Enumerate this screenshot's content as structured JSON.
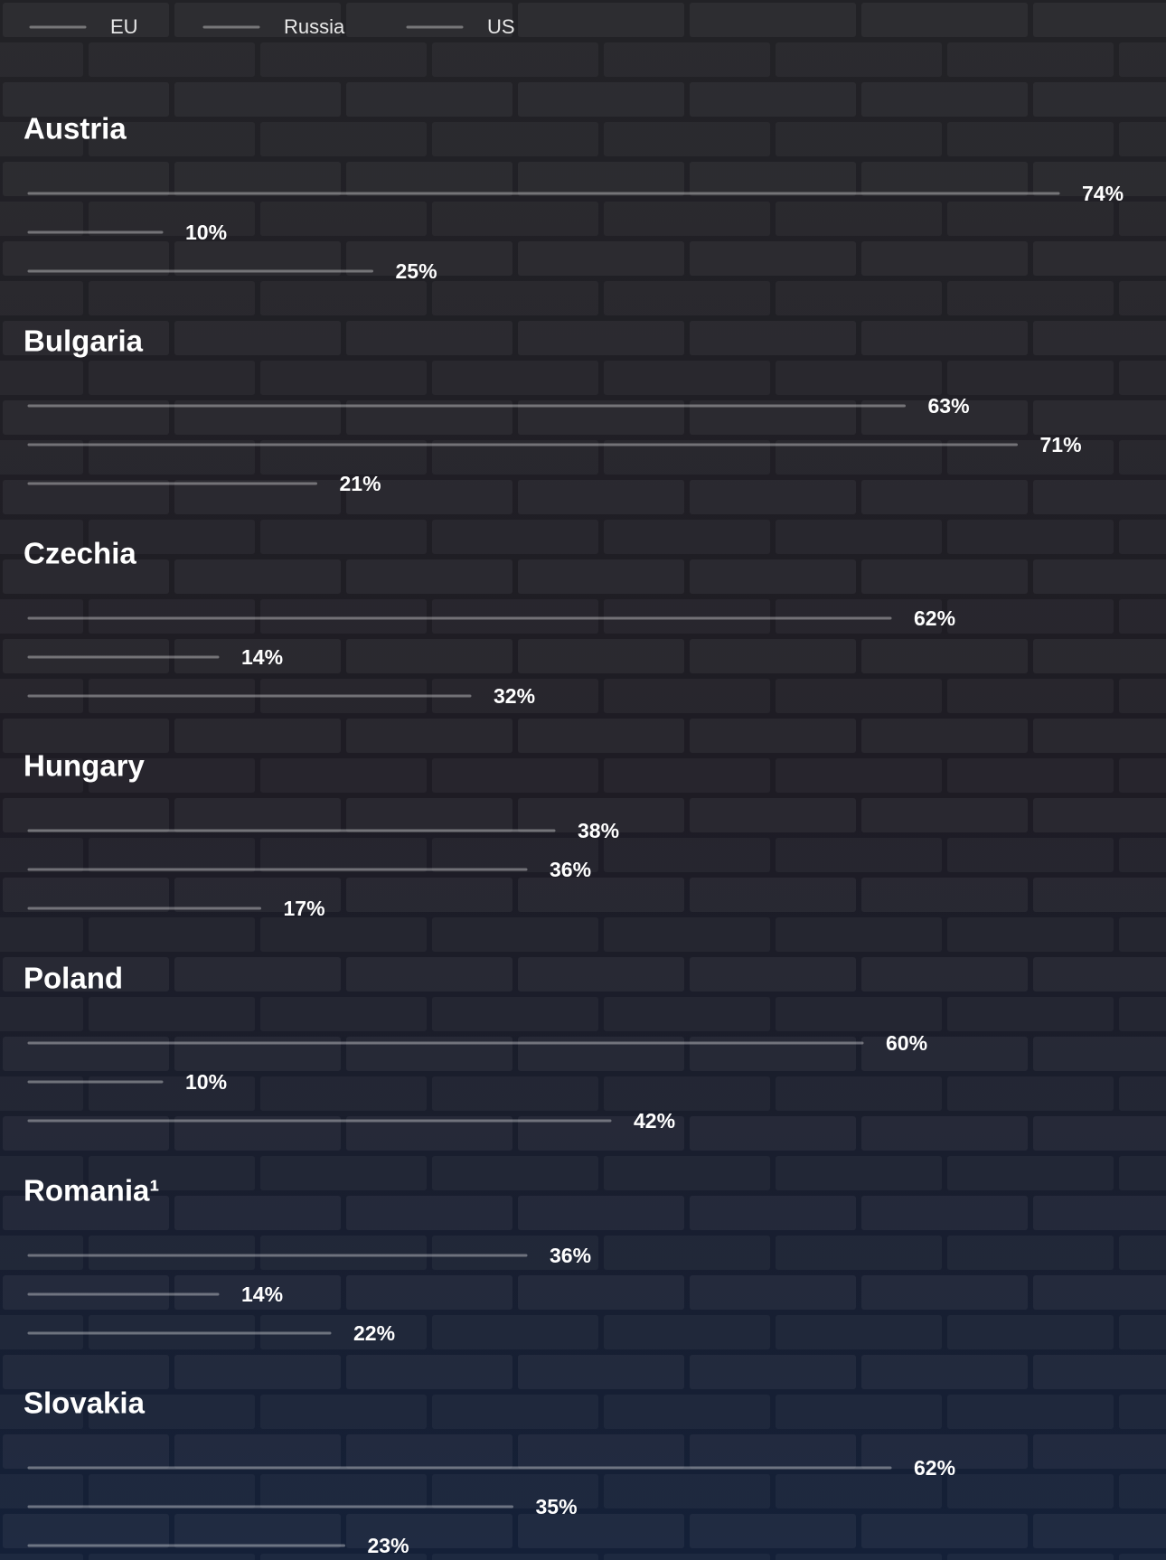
{
  "chart_data": {
    "type": "bar",
    "orientation": "horizontal",
    "categories": [
      "Austria",
      "Bulgaria",
      "Czechia",
      "Hungary",
      "Poland",
      "Romania¹",
      "Slovakia"
    ],
    "series": [
      {
        "name": "EU",
        "color": "#f7e81a",
        "values": [
          74,
          63,
          62,
          38,
          60,
          36,
          62
        ],
        "value_labels": [
          "74%",
          "63%",
          "62%",
          "38%",
          "60%",
          "36%",
          "62%"
        ]
      },
      {
        "name": "Russia",
        "color": "#ff2d6f",
        "values": [
          10,
          71,
          14,
          36,
          10,
          14,
          35
        ],
        "value_labels": [
          "10%",
          "71%",
          "14%",
          "36%",
          "10%",
          "14%",
          "35%"
        ]
      },
      {
        "name": "US",
        "color": "#2f7dff",
        "values": [
          25,
          21,
          32,
          17,
          42,
          22,
          23
        ],
        "value_labels": [
          "25%",
          "21%",
          "32%",
          "17%",
          "42%",
          "22%",
          "23%"
        ]
      }
    ],
    "legend": "top-left"
  }
}
